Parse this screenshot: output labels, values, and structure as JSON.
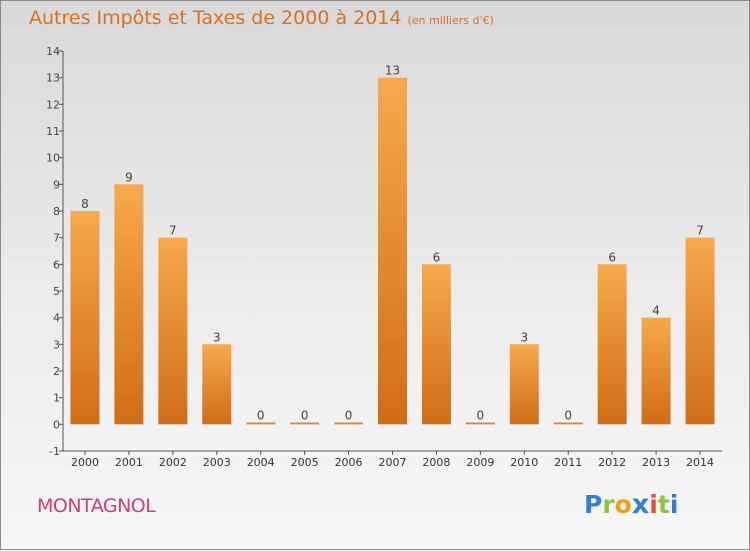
{
  "header": {
    "title": "Autres Impôts et Taxes de 2000 à 2014",
    "unit": "(en milliers d'€)"
  },
  "commune": "MONTAGNOL",
  "logo": {
    "text": "Proxiti",
    "letters": [
      "P",
      "r",
      "o",
      "x",
      "i",
      "t",
      "i"
    ],
    "colors": [
      "#2e7fd6",
      "#8cc63f",
      "#f39c12",
      "#2e7fd6",
      "#e74c3c",
      "#8cc63f",
      "#2e7fd6"
    ]
  },
  "colors": {
    "bar_light": "#f7a94c",
    "bar_dark": "#d06d16",
    "title": "#d8701e",
    "commune": "#d63a78"
  },
  "chart_data": {
    "type": "bar",
    "title": "Autres Impôts et Taxes de 2000 à 2014",
    "subtitle": "(en milliers d'€)",
    "categories": [
      "2000",
      "2001",
      "2002",
      "2003",
      "2004",
      "2005",
      "2006",
      "2007",
      "2008",
      "2009",
      "2010",
      "2011",
      "2012",
      "2013",
      "2014"
    ],
    "values": [
      8,
      9,
      7,
      3,
      0,
      0,
      0,
      13,
      6,
      0,
      3,
      0,
      6,
      4,
      7
    ],
    "ylim": [
      -1,
      14
    ],
    "yticks": [
      "-1",
      "0",
      "1",
      "2",
      "3",
      "4",
      "5",
      "6",
      "7",
      "8",
      "9",
      "10",
      "11",
      "12",
      "13",
      "14"
    ],
    "xlabel": "",
    "ylabel": "",
    "grid": false,
    "legend": "none"
  }
}
